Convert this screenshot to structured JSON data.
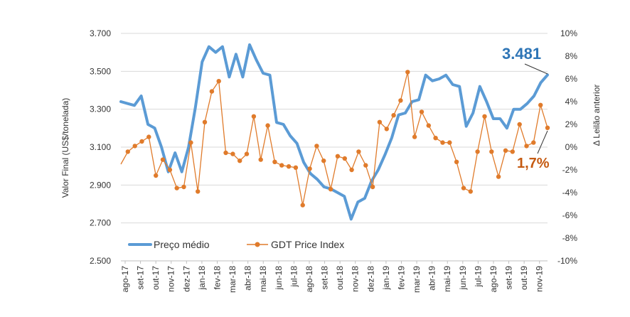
{
  "chart_data": {
    "type": "line",
    "x_tick_labels": [
      "ago-17",
      "set-17",
      "out-17",
      "nov-17",
      "dez-17",
      "jan-18",
      "fev-18",
      "mar-18",
      "abr-18",
      "mai-18",
      "jun-18",
      "jul-18",
      "ago-18",
      "set-18",
      "out-18",
      "nov-18",
      "dez-18",
      "jan-19",
      "fev-19",
      "mar-19",
      "abr-19",
      "mai-19",
      "jun-19",
      "jul-19",
      "ago-19",
      "set-19",
      "out-19",
      "nov-19"
    ],
    "y_left": {
      "label": "Valor Final (US$/tonelada)",
      "min": 2500,
      "max": 3700,
      "ticks": [
        "2.500",
        "2.700",
        "2.900",
        "3.100",
        "3.300",
        "3.500",
        "3.700"
      ]
    },
    "y_right": {
      "label": "Δ Leilão anterior",
      "min": -10,
      "max": 10,
      "ticks": [
        "-10%",
        "-8%",
        "-6%",
        "-4%",
        "-2%",
        "0%",
        "2%",
        "4%",
        "6%",
        "8%",
        "10%"
      ]
    },
    "grid": "horizontal",
    "legend_position": "bottom-left",
    "series": [
      {
        "name": "Preço médio",
        "axis": "left",
        "color": "#5b9bd5",
        "values": [
          3340,
          3330,
          3320,
          3370,
          3220,
          3200,
          3100,
          2970,
          3070,
          2970,
          3100,
          3310,
          3550,
          3630,
          3600,
          3630,
          3470,
          3590,
          3470,
          3640,
          3560,
          3490,
          3480,
          3230,
          3220,
          3160,
          3120,
          3020,
          2960,
          2930,
          2890,
          2880,
          2860,
          2840,
          2720,
          2810,
          2830,
          2920,
          2980,
          3060,
          3150,
          3270,
          3280,
          3340,
          3350,
          3480,
          3450,
          3460,
          3480,
          3430,
          3420,
          3210,
          3280,
          3420,
          3340,
          3250,
          3250,
          3200,
          3300,
          3300,
          3330,
          3370,
          3440,
          3481
        ]
      },
      {
        "name": "GDT Price Index",
        "axis": "right",
        "color": "#e07b2b",
        "values": [
          -1.5,
          -0.4,
          0.1,
          0.5,
          0.9,
          -2.5,
          -1.1,
          -2.0,
          -3.6,
          -3.5,
          0.4,
          -3.9,
          2.2,
          4.9,
          5.8,
          -0.5,
          -0.6,
          -1.2,
          -0.6,
          2.7,
          -1.1,
          1.9,
          -1.3,
          -1.6,
          -1.7,
          -1.8,
          -5.1,
          -1.9,
          0.1,
          -1.2,
          -3.7,
          -0.8,
          -1.0,
          -2.0,
          -0.4,
          -1.6,
          -3.5,
          2.2,
          1.6,
          2.8,
          4.1,
          6.6,
          0.9,
          3.1,
          1.9,
          0.8,
          0.4,
          0.4,
          -1.3,
          -3.6,
          -3.9,
          -0.4,
          2.7,
          -0.4,
          -2.6,
          -0.3,
          -0.4,
          2.0,
          0.1,
          0.4,
          3.7,
          1.7
        ]
      }
    ],
    "annotations": [
      {
        "text": "3.481",
        "series": "Preço médio",
        "value": 3481
      },
      {
        "text": "1,7%",
        "series": "GDT Price Index",
        "value": 1.7
      }
    ]
  },
  "legend": {
    "item1": "Preço médio",
    "item2": "GDT Price Index"
  },
  "colors": {
    "blue": "#5b9bd5",
    "orange": "#e07b2b",
    "blue_text": "#2e75b6",
    "orange_text": "#c55a11",
    "grid": "#d9d9d9"
  }
}
